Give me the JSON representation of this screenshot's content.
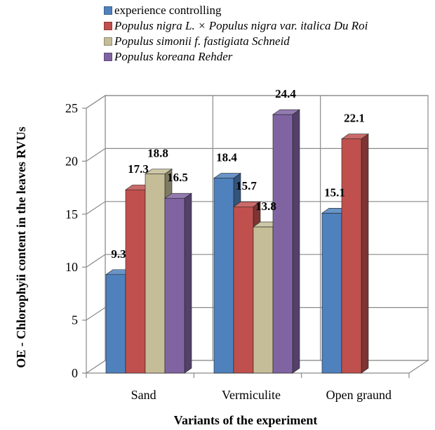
{
  "chart_data": {
    "type": "bar",
    "xlabel": "Variants of the experiment",
    "ylabel": "OE - Chlorophyii content in the leaves  RVUs",
    "ylim": [
      0,
      25
    ],
    "yticks": [
      0,
      5,
      10,
      15,
      20,
      25
    ],
    "grid": true,
    "legend_position": "top",
    "categories": [
      "Sand",
      "Vermiculite",
      "Open graund"
    ],
    "series": [
      {
        "name": "experience controlling",
        "italic": false,
        "color": "#4f81bd",
        "values": [
          9.3,
          18.4,
          15.1
        ],
        "labels": [
          "9.3",
          "18.4",
          "15.1"
        ]
      },
      {
        "name": "Populus nigra L. × Populus nigra var. italica Du Roi",
        "italic": true,
        "color": "#c0504d",
        "values": [
          17.3,
          15.7,
          22.1
        ],
        "labels": [
          "17.3",
          "15.7",
          "22.1"
        ]
      },
      {
        "name": "Populus simonii f. fastigiata Schneid",
        "italic": true,
        "color": "#c4bd97",
        "values": [
          18.8,
          13.8,
          null
        ],
        "labels": [
          "18.8",
          "13.8",
          ""
        ]
      },
      {
        "name": "Populus koreana Rehder",
        "italic": true,
        "color": "#8064a2",
        "values": [
          16.5,
          24.4,
          null
        ],
        "labels": [
          "16.5",
          "24.4",
          ""
        ]
      }
    ]
  }
}
